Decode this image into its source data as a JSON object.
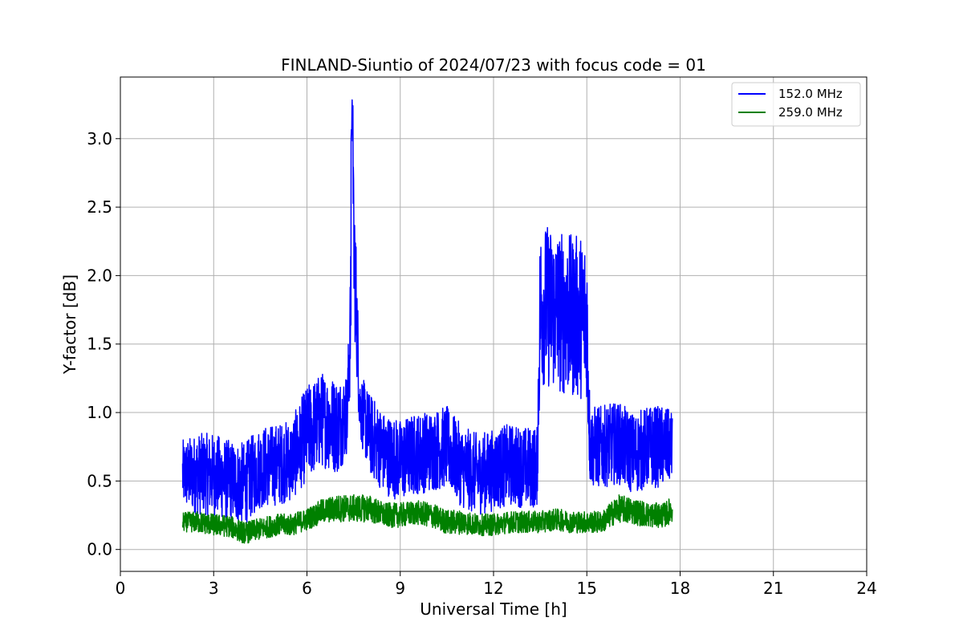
{
  "chart_data": {
    "type": "line",
    "title": "FINLAND-Siuntio of 2024/07/23 with focus code = 01",
    "xlabel": "Universal Time [h]",
    "ylabel": "Y-factor [dB]",
    "xlim": [
      0,
      24
    ],
    "ylim": [
      -0.16,
      3.45
    ],
    "xticks": [
      0,
      3,
      6,
      9,
      12,
      15,
      18,
      21,
      24
    ],
    "xtick_labels": [
      "0",
      "3",
      "6",
      "9",
      "12",
      "15",
      "18",
      "21",
      "24"
    ],
    "yticks": [
      0.0,
      0.5,
      1.0,
      1.5,
      2.0,
      2.5,
      3.0
    ],
    "ytick_labels": [
      "0.0",
      "0.5",
      "1.0",
      "1.5",
      "2.0",
      "2.5",
      "3.0"
    ],
    "grid": true,
    "legend_position": "top-right",
    "series": [
      {
        "name": "152.0 MHz",
        "color": "#0000ff",
        "x": [
          2.0,
          2.5,
          3.0,
          3.5,
          4.0,
          4.5,
          5.0,
          5.5,
          6.0,
          6.5,
          7.0,
          7.3,
          7.5,
          7.7,
          8.0,
          8.5,
          9.0,
          9.5,
          10.0,
          10.5,
          11.0,
          11.5,
          12.0,
          12.5,
          13.0,
          13.4,
          13.5,
          14.0,
          14.5,
          15.0,
          15.1,
          15.5,
          16.0,
          16.5,
          17.0,
          17.5,
          17.75
        ],
        "y": [
          0.55,
          0.55,
          0.55,
          0.5,
          0.48,
          0.6,
          0.62,
          0.65,
          0.85,
          0.95,
          0.9,
          1.0,
          2.3,
          1.05,
          0.85,
          0.7,
          0.65,
          0.7,
          0.72,
          0.75,
          0.6,
          0.55,
          0.58,
          0.62,
          0.6,
          0.6,
          1.8,
          1.75,
          1.7,
          1.7,
          0.75,
          0.75,
          0.78,
          0.7,
          0.75,
          0.75,
          0.75
        ],
        "spread": [
          0.25,
          0.3,
          0.3,
          0.3,
          0.3,
          0.3,
          0.3,
          0.3,
          0.35,
          0.35,
          0.35,
          0.3,
          0.6,
          0.25,
          0.3,
          0.3,
          0.3,
          0.3,
          0.3,
          0.3,
          0.3,
          0.3,
          0.3,
          0.3,
          0.3,
          0.3,
          0.6,
          0.6,
          0.6,
          0.6,
          0.3,
          0.3,
          0.3,
          0.3,
          0.3,
          0.3,
          0.25
        ],
        "peak_max": 3.3
      },
      {
        "name": "259.0 MHz",
        "color": "#008000",
        "x": [
          2.0,
          2.5,
          3.0,
          3.5,
          4.0,
          4.5,
          5.0,
          5.5,
          6.0,
          6.5,
          7.0,
          7.5,
          8.0,
          8.5,
          9.0,
          9.5,
          10.0,
          10.5,
          11.0,
          11.5,
          12.0,
          12.5,
          13.0,
          13.5,
          14.0,
          14.5,
          15.0,
          15.5,
          16.0,
          16.5,
          17.0,
          17.5,
          17.75
        ],
        "y": [
          0.2,
          0.2,
          0.18,
          0.17,
          0.12,
          0.15,
          0.18,
          0.18,
          0.22,
          0.28,
          0.3,
          0.3,
          0.3,
          0.25,
          0.25,
          0.27,
          0.25,
          0.2,
          0.2,
          0.18,
          0.18,
          0.2,
          0.2,
          0.2,
          0.22,
          0.2,
          0.2,
          0.2,
          0.3,
          0.28,
          0.25,
          0.25,
          0.3
        ],
        "spread": [
          0.07,
          0.08,
          0.08,
          0.08,
          0.08,
          0.08,
          0.08,
          0.08,
          0.08,
          0.09,
          0.1,
          0.1,
          0.1,
          0.09,
          0.09,
          0.09,
          0.09,
          0.09,
          0.09,
          0.08,
          0.08,
          0.08,
          0.08,
          0.08,
          0.08,
          0.08,
          0.08,
          0.08,
          0.1,
          0.1,
          0.09,
          0.09,
          0.1
        ]
      }
    ]
  }
}
